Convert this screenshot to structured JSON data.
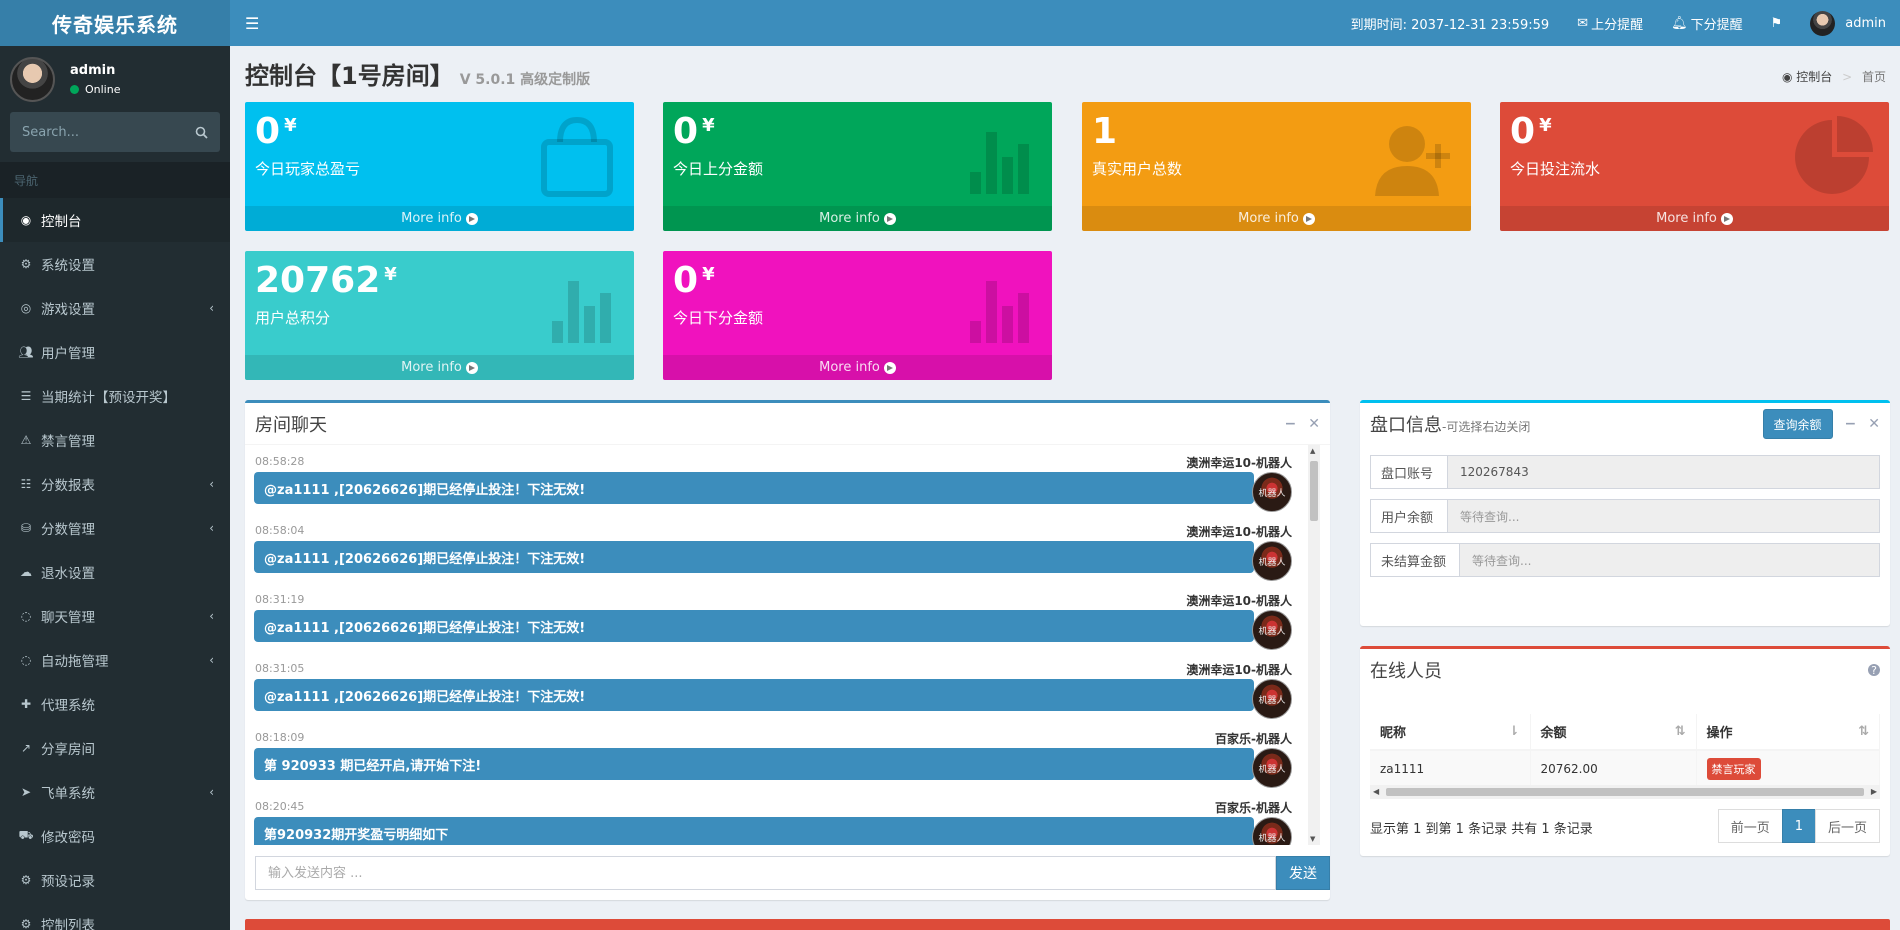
{
  "brand": {
    "title": "传奇娱乐系统"
  },
  "user": {
    "name": "admin",
    "status": "Online"
  },
  "search": {
    "placeholder": "Search..."
  },
  "nav": {
    "header": "导航",
    "items": [
      {
        "label": "控制台",
        "icon": "dashboard-icon",
        "arrow": false
      },
      {
        "label": "系统设置",
        "icon": "cogs-icon",
        "arrow": false
      },
      {
        "label": "游戏设置",
        "icon": "gamepad-icon",
        "arrow": true
      },
      {
        "label": "用户管理",
        "icon": "users-icon",
        "arrow": false
      },
      {
        "label": "当期统计【预设开奖】",
        "icon": "list-icon",
        "arrow": false
      },
      {
        "label": "禁言管理",
        "icon": "warning-icon",
        "arrow": false
      },
      {
        "label": "分数报表",
        "icon": "list-ol-icon",
        "arrow": true
      },
      {
        "label": "分数管理",
        "icon": "database-icon",
        "arrow": true
      },
      {
        "label": "退水设置",
        "icon": "cloud-upload-icon",
        "arrow": false
      },
      {
        "label": "聊天管理",
        "icon": "comments-icon",
        "arrow": true
      },
      {
        "label": "自动拖管理",
        "icon": "comment-icon",
        "arrow": true
      },
      {
        "label": "代理系统",
        "icon": "user-plus-icon",
        "arrow": false
      },
      {
        "label": "分享房间",
        "icon": "share-icon",
        "arrow": false
      },
      {
        "label": "飞单系统",
        "icon": "paper-plane-icon",
        "arrow": true
      },
      {
        "label": "修改密码",
        "icon": "cart-icon",
        "arrow": false
      },
      {
        "label": "预设记录",
        "icon": "gear-icon",
        "arrow": false
      },
      {
        "label": "控制列表",
        "icon": "gear-icon",
        "arrow": false
      }
    ]
  },
  "topbar": {
    "expire": "到期时间: 2037-12-31 23:59:59",
    "up_alert": "上分提醒",
    "down_alert": "下分提醒",
    "username": "admin"
  },
  "header": {
    "title": "控制台【1号房间】",
    "subtitle": "V 5.0.1 高级定制版",
    "breadcrumb_home": "控制台",
    "breadcrumb_current": "首页"
  },
  "currency": "¥",
  "more_info": "More info",
  "stats": [
    {
      "value": "0",
      "label": "今日玩家总盈亏",
      "unit": true,
      "color": "#00c0ef",
      "icon": "shopping-bag-icon"
    },
    {
      "value": "0",
      "label": "今日上分金额",
      "unit": true,
      "color": "#00a65a",
      "icon": "bar-chart-icon"
    },
    {
      "value": "1",
      "label": "真实用户总数",
      "unit": false,
      "color": "#f39c12",
      "icon": "user-plus-icon"
    },
    {
      "value": "0",
      "label": "今日投注流水",
      "unit": true,
      "color": "#dd4b39",
      "icon": "pie-chart-icon"
    },
    {
      "value": "20762",
      "label": "用户总积分",
      "unit": true,
      "color": "#39cccc",
      "icon": "bar-chart-icon"
    },
    {
      "value": "0",
      "label": "今日下分金额",
      "unit": true,
      "color": "#f012be",
      "icon": "bar-chart-icon"
    }
  ],
  "chat": {
    "title": "房间聊天",
    "input_placeholder": "输入发送内容 ...",
    "send": "发送",
    "avatar_text": "机器人",
    "messages": [
      {
        "time": "08:58:28",
        "author": "澳洲幸运10-机器人",
        "text": "@za1111 ,[20626626]期已经停止投注！下注无效!"
      },
      {
        "time": "08:58:04",
        "author": "澳洲幸运10-机器人",
        "text": "@za1111 ,[20626626]期已经停止投注！下注无效!"
      },
      {
        "time": "08:31:19",
        "author": "澳洲幸运10-机器人",
        "text": "@za1111 ,[20626626]期已经停止投注！下注无效!"
      },
      {
        "time": "08:31:05",
        "author": "澳洲幸运10-机器人",
        "text": "@za1111 ,[20626626]期已经停止投注！下注无效!"
      },
      {
        "time": "08:18:09",
        "author": "百家乐-机器人",
        "text": "第 920933 期已经开启,请开始下注!"
      },
      {
        "time": "08:20:45",
        "author": "百家乐-机器人",
        "text": "第920932期开奖盈亏明细如下"
      }
    ]
  },
  "account": {
    "title": "盘口信息",
    "subtitle": "-可选择右边关闭",
    "query_btn": "查询余额",
    "fields": [
      {
        "label": "盘口账号",
        "value": "120267843",
        "placeholder": false
      },
      {
        "label": "用户余额",
        "value": "等待查询...",
        "placeholder": true
      },
      {
        "label": "未结算金额",
        "value": "等待查询...",
        "placeholder": true
      }
    ]
  },
  "online": {
    "title": "在线人员",
    "columns": [
      "昵称",
      "余额",
      "操作"
    ],
    "rows": [
      {
        "nickname": "za1111",
        "balance": "20762.00",
        "action": "禁言玩家"
      }
    ],
    "info": "显示第 1 到第 1 条记录 共有 1 条记录",
    "prev": "前一页",
    "page": "1",
    "next": "后一页"
  }
}
